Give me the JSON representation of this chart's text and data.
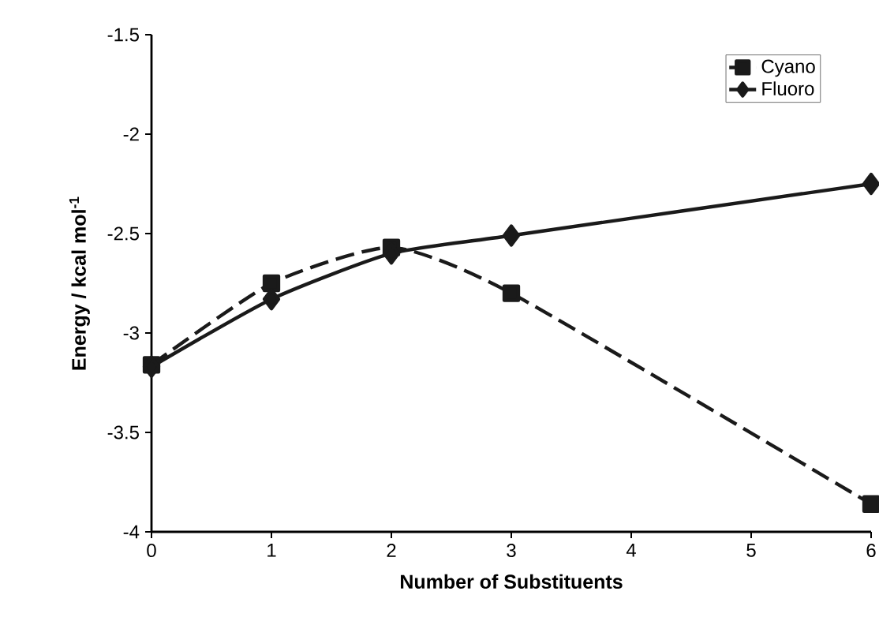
{
  "chart_data": {
    "type": "line",
    "xlabel": "Number of Substituents",
    "ylabel": "Energy / kcal mol$^{-1}$",
    "xlim": [
      0,
      6
    ],
    "xticks": [
      0,
      1,
      2,
      3,
      4,
      5,
      6
    ],
    "ylim": [
      -4,
      -1.5
    ],
    "yticks": [
      -4,
      -3.5,
      -3,
      -2.5,
      -2,
      -1.5
    ],
    "legend": "top right",
    "series": [
      {
        "name": "Cyano",
        "color": "#1a1a1a",
        "marker": "square",
        "line_style": "dashed",
        "x": [
          0,
          1,
          2,
          3,
          6
        ],
        "values": [
          -3.16,
          -2.75,
          -2.57,
          -2.8,
          -3.86
        ]
      },
      {
        "name": "Fluoro",
        "color": "#1a1a1a",
        "marker": "diamond",
        "line_style": "solid",
        "x": [
          0,
          1,
          2,
          3,
          6
        ],
        "values": [
          -3.17,
          -2.83,
          -2.6,
          -2.51,
          -2.25
        ]
      }
    ]
  }
}
